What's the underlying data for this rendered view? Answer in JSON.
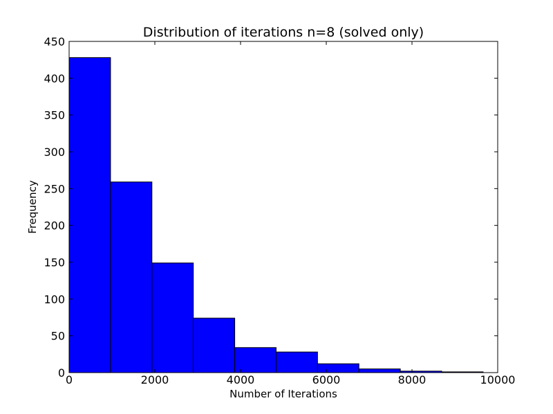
{
  "chart_data": {
    "type": "bar",
    "title": "Distribution of iterations n=8 (solved only)",
    "xlabel": "Number of Iterations",
    "ylabel": "Frequency",
    "xlim": [
      0,
      10000
    ],
    "ylim": [
      0,
      450
    ],
    "x_ticks": [
      0,
      2000,
      4000,
      6000,
      8000,
      10000
    ],
    "y_ticks": [
      0,
      50,
      100,
      150,
      200,
      250,
      300,
      350,
      400,
      450
    ],
    "bins": [
      {
        "start": 0,
        "end": 966,
        "count": 428
      },
      {
        "start": 966,
        "end": 1932,
        "count": 259
      },
      {
        "start": 1932,
        "end": 2898,
        "count": 149
      },
      {
        "start": 2898,
        "end": 3864,
        "count": 74
      },
      {
        "start": 3864,
        "end": 4830,
        "count": 34
      },
      {
        "start": 4830,
        "end": 5796,
        "count": 28
      },
      {
        "start": 5796,
        "end": 6762,
        "count": 12
      },
      {
        "start": 6762,
        "end": 7728,
        "count": 5
      },
      {
        "start": 7728,
        "end": 8694,
        "count": 2
      },
      {
        "start": 8694,
        "end": 9660,
        "count": 1
      }
    ],
    "bar_color": "#0000ff",
    "edge_color": "#000000",
    "grid": false,
    "legend": "none"
  }
}
